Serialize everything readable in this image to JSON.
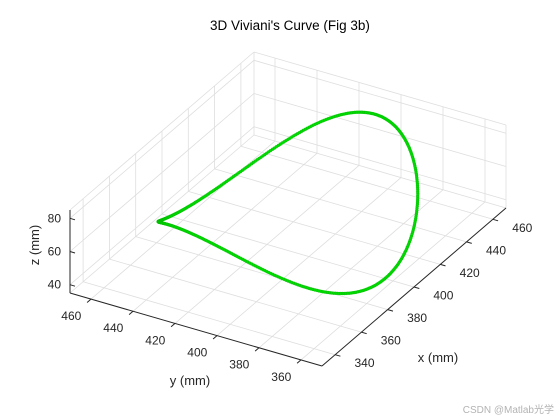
{
  "chart_data": {
    "type": "scatter3d",
    "title": "3D Viviani's Curve (Fig 3b)",
    "xlabel": "x (mm)",
    "ylabel": "y (mm)",
    "zlabel": "z (mm)",
    "xlim": [
      330,
      470
    ],
    "ylim": [
      350,
      470
    ],
    "zlim": [
      35,
      85
    ],
    "xticks": [
      340,
      360,
      380,
      400,
      420,
      440,
      460
    ],
    "yticks": [
      360,
      380,
      400,
      420,
      440,
      460
    ],
    "zticks": [
      40,
      60,
      80
    ],
    "grid": true,
    "marker_color": "#00dd00",
    "series": [
      {
        "curve": "viviani",
        "center": {
          "x": 400,
          "y": 410,
          "z": 60
        },
        "radius_x": 58,
        "radius_y": 50,
        "amplitude_z": 20,
        "point_count": 420
      }
    ]
  },
  "watermark": "CSDN @Matlab光学"
}
